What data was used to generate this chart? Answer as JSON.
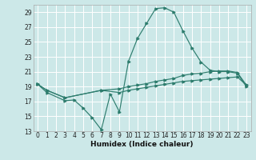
{
  "bg_color": "#cce8e8",
  "grid_color": "#ffffff",
  "line_color": "#2e7d6e",
  "xlabel": "Humidex (Indice chaleur)",
  "xlim": [
    -0.5,
    23.5
  ],
  "ylim": [
    13,
    30
  ],
  "yticks": [
    13,
    15,
    17,
    19,
    21,
    23,
    25,
    27,
    29
  ],
  "xticks": [
    0,
    1,
    2,
    3,
    4,
    5,
    6,
    7,
    8,
    9,
    10,
    11,
    12,
    13,
    14,
    15,
    16,
    17,
    18,
    19,
    20,
    21,
    22,
    23
  ],
  "curve1_x": [
    0,
    1,
    3,
    4,
    5,
    6,
    7,
    8,
    9,
    10,
    11,
    12,
    13,
    14,
    15,
    16,
    17,
    18,
    19,
    20,
    21,
    22,
    23
  ],
  "curve1_y": [
    19.3,
    18.2,
    17.1,
    17.2,
    16.1,
    14.8,
    13.2,
    18.0,
    15.6,
    22.4,
    25.5,
    27.5,
    29.5,
    29.6,
    29.0,
    26.5,
    24.2,
    22.3,
    21.2,
    21.0,
    21.0,
    20.8,
    19.0
  ],
  "curve2_x": [
    0,
    1,
    3,
    7,
    9,
    10,
    11,
    12,
    13,
    14,
    15,
    16,
    17,
    18,
    19,
    20,
    21,
    22,
    23
  ],
  "curve2_y": [
    19.3,
    18.5,
    17.5,
    18.5,
    18.7,
    19.0,
    19.2,
    19.4,
    19.7,
    19.9,
    20.1,
    20.5,
    20.7,
    20.8,
    21.0,
    21.1,
    21.1,
    20.9,
    19.2
  ],
  "curve3_x": [
    0,
    1,
    3,
    7,
    9,
    10,
    11,
    12,
    13,
    14,
    15,
    16,
    17,
    18,
    19,
    20,
    21,
    22,
    23
  ],
  "curve3_y": [
    19.3,
    18.5,
    17.5,
    18.5,
    18.2,
    18.5,
    18.7,
    18.9,
    19.1,
    19.3,
    19.5,
    19.7,
    19.8,
    19.9,
    20.0,
    20.1,
    20.2,
    20.3,
    19.2
  ]
}
